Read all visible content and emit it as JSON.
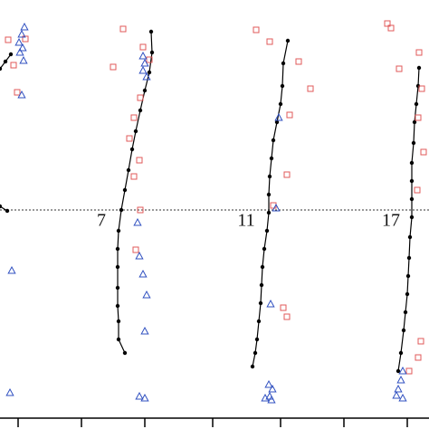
{
  "chart_data": {
    "type": "scatter",
    "xlim": [
      0,
      474
    ],
    "ylim": [
      474,
      0
    ],
    "xticks": [
      20,
      90,
      160,
      235,
      310,
      380,
      450
    ],
    "reference_line": 232,
    "axis_line": 462,
    "annotations": [
      "7",
      "11",
      "17"
    ],
    "series": [
      {
        "marker": "dot",
        "line": true,
        "color": "#000000",
        "x": [
          0,
          6,
          12,
          null,
          0,
          8,
          null,
          167,
          168,
          165,
          160,
          155,
          150,
          146,
          142,
          138,
          134,
          131,
          130,
          130,
          130,
          130,
          131,
          131,
          138,
          null,
          318,
          313,
          312,
          310,
          306,
          302,
          300,
          298,
          297,
          297,
          295,
          292,
          290,
          289,
          288,
          286,
          284,
          282,
          279,
          null,
          463,
          462,
          460,
          458,
          457,
          455,
          455,
          455,
          455,
          453,
          452,
          451,
          450,
          448,
          446,
          443,
          440
        ],
        "values": [
          76,
          68,
          60,
          null,
          228,
          233,
          null,
          35,
          58,
          80,
          100,
          122,
          145,
          165,
          188,
          210,
          232,
          255,
          275,
          295,
          318,
          338,
          355,
          375,
          390,
          null,
          45,
          70,
          95,
          115,
          135,
          155,
          175,
          195,
          215,
          235,
          255,
          275,
          295,
          315,
          335,
          355,
          375,
          390,
          405,
          null,
          75,
          95,
          115,
          135,
          158,
          180,
          200,
          220,
          240,
          262,
          285,
          305,
          325,
          345,
          365,
          390,
          410
        ]
      },
      {
        "marker": "square",
        "line": false,
        "color": "#e05a5a",
        "x": [
          9,
          28,
          15,
          19,
          136,
          158,
          165,
          125,
          155,
          148,
          143,
          154,
          148,
          155,
          150,
          283,
          298,
          330,
          343,
          320,
          317,
          302,
          313,
          317,
          428,
          432,
          441,
          463,
          466,
          462,
          468,
          461,
          465,
          462,
          452
        ],
        "values": [
          44,
          43,
          72,
          102,
          32,
          52,
          66,
          74,
          108,
          130,
          153,
          177,
          195,
          232,
          276,
          33,
          46,
          68,
          98,
          127,
          193,
          227,
          340,
          350,
          26,
          31,
          76,
          58,
          98,
          130,
          168,
          210,
          377,
          395,
          410
        ]
      },
      {
        "marker": "triangle",
        "line": false,
        "color": "#3050c0",
        "x": [
          27,
          24,
          21,
          25,
          22,
          26,
          24,
          158,
          160,
          158,
          162,
          152,
          154,
          158,
          162,
          160,
          154,
          160,
          308,
          305,
          299,
          301,
          298,
          293,
          297,
          300,
          13,
          11,
          445,
          443,
          440,
          445,
          438
        ],
        "values": [
          30,
          38,
          47,
          53,
          58,
          67,
          105,
          62,
          70,
          78,
          85,
          246,
          283,
          303,
          326,
          366,
          438,
          440,
          130,
          230,
          336,
          430,
          438,
          440,
          425,
          442,
          299,
          434,
          410,
          420,
          430,
          440,
          437
        ]
      }
    ]
  }
}
